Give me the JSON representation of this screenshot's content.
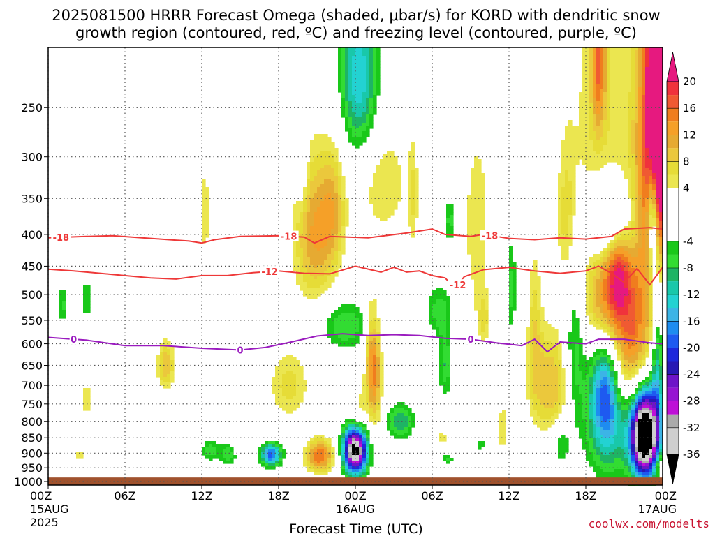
{
  "chart_data": {
    "type": "heatmap",
    "title_lines": [
      "2025081500 HRRR Forecast Omega (shaded, μbar/s) for KORD with dendritic snow",
      "growth region (contoured, red, ºC) and freezing level (contoured, purple, ºC)"
    ],
    "xlabel": "Forecast Time (UTC)",
    "credit": "coolwx.com/modelts",
    "x_ticks": [
      {
        "h": 0,
        "l1": "00Z",
        "l2": "15AUG",
        "l3": "2025"
      },
      {
        "h": 6,
        "l1": "06Z"
      },
      {
        "h": 12,
        "l1": "12Z"
      },
      {
        "h": 18,
        "l1": "18Z"
      },
      {
        "h": 24,
        "l1": "00Z",
        "l2": "16AUG"
      },
      {
        "h": 30,
        "l1": "06Z"
      },
      {
        "h": 36,
        "l1": "12Z"
      },
      {
        "h": 42,
        "l1": "18Z"
      },
      {
        "h": 48,
        "l1": "00Z",
        "l2": "17AUG"
      }
    ],
    "y_ticks": [
      "250",
      "300",
      "350",
      "400",
      "450",
      "500",
      "550",
      "600",
      "650",
      "700",
      "750",
      "800",
      "850",
      "900",
      "950",
      "1000"
    ],
    "y_range_hPa": [
      200,
      1013
    ],
    "x_range_hours": [
      0,
      48
    ],
    "colorbar": {
      "labels": [
        "20",
        "16",
        "12",
        "8",
        "4",
        "-4",
        "-8",
        "-12",
        "-16",
        "-20",
        "-24",
        "-28",
        "-32",
        "-36"
      ],
      "bands": [
        {
          "lo": 20,
          "hi": 99,
          "color": "#e6197f"
        },
        {
          "lo": 18,
          "hi": 20,
          "color": "#f0323c"
        },
        {
          "lo": 16,
          "hi": 18,
          "color": "#f05a32"
        },
        {
          "lo": 14,
          "hi": 16,
          "color": "#f07d1e"
        },
        {
          "lo": 12,
          "hi": 14,
          "color": "#f5a028"
        },
        {
          "lo": 10,
          "hi": 12,
          "color": "#e6aa32"
        },
        {
          "lo": 8,
          "hi": 10,
          "color": "#ebc83c"
        },
        {
          "lo": 6,
          "hi": 8,
          "color": "#e6dc37"
        },
        {
          "lo": 4,
          "hi": 6,
          "color": "#ebe650"
        },
        {
          "lo": -4,
          "hi": 4,
          "color": "#ffffff"
        },
        {
          "lo": -6,
          "hi": -4,
          "color": "#19c819"
        },
        {
          "lo": -8,
          "hi": -6,
          "color": "#32dc32"
        },
        {
          "lo": -10,
          "hi": -8,
          "color": "#1eb464"
        },
        {
          "lo": -12,
          "hi": -10,
          "color": "#19c8aa"
        },
        {
          "lo": -14,
          "hi": -12,
          "color": "#23d2d2"
        },
        {
          "lo": -16,
          "hi": -14,
          "color": "#3cb4e6"
        },
        {
          "lo": -18,
          "hi": -16,
          "color": "#1e8cf0"
        },
        {
          "lo": -20,
          "hi": -18,
          "color": "#1e5af0"
        },
        {
          "lo": -22,
          "hi": -20,
          "color": "#1e28dc"
        },
        {
          "lo": -24,
          "hi": -22,
          "color": "#2819b4"
        },
        {
          "lo": -26,
          "hi": -24,
          "color": "#6e14c8"
        },
        {
          "lo": -28,
          "hi": -26,
          "color": "#9614d2"
        },
        {
          "lo": -30,
          "hi": -28,
          "color": "#be0fd7"
        },
        {
          "lo": -32,
          "hi": -30,
          "color": "#aaaaaa"
        },
        {
          "lo": -36,
          "hi": -32,
          "color": "#cfcfcf"
        },
        {
          "lo": -99,
          "hi": -36,
          "color": "#000000"
        }
      ]
    },
    "omega_features": [
      {
        "t": 2.5,
        "p": 905,
        "sx": 0.3,
        "sy": 12,
        "peak": 6
      },
      {
        "t": 3.0,
        "p": 740,
        "sx": 0.3,
        "sy": 40,
        "peak": 6
      },
      {
        "t": 1.1,
        "p": 520,
        "sx": 0.25,
        "sy": 30,
        "peak": -7
      },
      {
        "t": 3.0,
        "p": 510,
        "sx": 0.22,
        "sy": 30,
        "peak": -7
      },
      {
        "t": 9.2,
        "p": 650,
        "sx": 0.5,
        "sy": 45,
        "peak": 10
      },
      {
        "t": 12.2,
        "p": 370,
        "sx": 0.35,
        "sy": 50,
        "peak": 6
      },
      {
        "t": 12.6,
        "p": 890,
        "sx": 0.5,
        "sy": 28,
        "peak": -7
      },
      {
        "t": 14.2,
        "p": 900,
        "sx": 0.6,
        "sy": 30,
        "peak": -9
      },
      {
        "t": 15.0,
        "p": 890,
        "sx": 0.6,
        "sy": 25,
        "peak": 5
      },
      {
        "t": 17.4,
        "p": 905,
        "sx": 0.6,
        "sy": 28,
        "peak": -19
      },
      {
        "t": 18.8,
        "p": 700,
        "sx": 1.2,
        "sy": 70,
        "peak": 7
      },
      {
        "t": 21.2,
        "p": 910,
        "sx": 0.8,
        "sy": 40,
        "peak": 16
      },
      {
        "t": 20.8,
        "p": 400,
        "sx": 1.2,
        "sy": 80,
        "peak": 12
      },
      {
        "t": 22.3,
        "p": 360,
        "sx": 0.7,
        "sy": 60,
        "peak": 7
      },
      {
        "t": 19.8,
        "p": 300,
        "sx": 0.3,
        "sy": 40,
        "peak": -7
      },
      {
        "t": 24.0,
        "p": 890,
        "sx": 0.65,
        "sy": 55,
        "peak": -40
      },
      {
        "t": 23.2,
        "p": 560,
        "sx": 1.5,
        "sy": 40,
        "peak": -8
      },
      {
        "t": 24.3,
        "p": 780,
        "sx": 0.5,
        "sy": 60,
        "peak": 6
      },
      {
        "t": 24.3,
        "p": 225,
        "sx": 1.1,
        "sy": 50,
        "peak": -14
      },
      {
        "t": 26.2,
        "p": 330,
        "sx": 1.5,
        "sy": 55,
        "peak": 6
      },
      {
        "t": 25.2,
        "p": 600,
        "sx": 0.4,
        "sy": 80,
        "peak": 6
      },
      {
        "t": 25.5,
        "p": 680,
        "sx": 0.4,
        "sy": 100,
        "peak": 12
      },
      {
        "t": 27.5,
        "p": 800,
        "sx": 0.8,
        "sy": 40,
        "peak": -10
      },
      {
        "t": 28.5,
        "p": 350,
        "sx": 0.3,
        "sy": 60,
        "peak": 5
      },
      {
        "t": 30.5,
        "p": 530,
        "sx": 0.8,
        "sy": 40,
        "peak": -7
      },
      {
        "t": 31.0,
        "p": 650,
        "sx": 0.4,
        "sy": 60,
        "peak": -8
      },
      {
        "t": 31.4,
        "p": 380,
        "sx": 0.35,
        "sy": 25,
        "peak": -7
      },
      {
        "t": 30.8,
        "p": 850,
        "sx": 0.3,
        "sy": 15,
        "peak": 6
      },
      {
        "t": 31.2,
        "p": 920,
        "sx": 0.3,
        "sy": 15,
        "peak": -7
      },
      {
        "t": 33.5,
        "p": 390,
        "sx": 0.8,
        "sy": 100,
        "peak": 6
      },
      {
        "t": 34.0,
        "p": 550,
        "sx": 0.4,
        "sy": 40,
        "peak": 6
      },
      {
        "t": 33.8,
        "p": 870,
        "sx": 0.2,
        "sy": 20,
        "peak": -6
      },
      {
        "t": 35.5,
        "p": 820,
        "sx": 0.4,
        "sy": 60,
        "peak": 6
      },
      {
        "t": 36.2,
        "p": 490,
        "sx": 0.25,
        "sy": 70,
        "peak": -7
      },
      {
        "t": 38.0,
        "p": 560,
        "sx": 0.4,
        "sy": 120,
        "peak": 6
      },
      {
        "t": 39.3,
        "p": 700,
        "sx": 1.2,
        "sy": 100,
        "peak": 10
      },
      {
        "t": 40.5,
        "p": 380,
        "sx": 0.5,
        "sy": 70,
        "peak": 6
      },
      {
        "t": 40.0,
        "p": 870,
        "sx": 0.5,
        "sy": 50,
        "peak": -7
      },
      {
        "t": 41.1,
        "p": 620,
        "sx": 0.6,
        "sy": 140,
        "peak": -9
      },
      {
        "t": 43.0,
        "p": 210,
        "sx": 0.4,
        "sy": 40,
        "peak": 12
      },
      {
        "t": 43.3,
        "p": 300,
        "sx": 2.2,
        "sy": 170,
        "peak": 6
      },
      {
        "t": 43.2,
        "p": 520,
        "sx": 1.0,
        "sy": 60,
        "peak": 8
      },
      {
        "t": 44.0,
        "p": 380,
        "sx": 1.2,
        "sy": 40,
        "peak": -13
      },
      {
        "t": 45.5,
        "p": 600,
        "sx": 1.2,
        "sy": 120,
        "peak": 15
      },
      {
        "t": 44.5,
        "p": 460,
        "sx": 0.7,
        "sy": 60,
        "peak": 12
      },
      {
        "t": 43.8,
        "p": 820,
        "sx": 1.3,
        "sy": 120,
        "peak": -12
      },
      {
        "t": 43.5,
        "p": 700,
        "sx": 0.8,
        "sy": 90,
        "peak": -14
      },
      {
        "t": 46.6,
        "p": 840,
        "sx": 0.75,
        "sy": 95,
        "peak": -48
      },
      {
        "t": 47.1,
        "p": 300,
        "sx": 0.9,
        "sy": 140,
        "peak": 16
      },
      {
        "t": 47.8,
        "p": 220,
        "sx": 0.6,
        "sy": 120,
        "peak": 26
      },
      {
        "t": 47.2,
        "p": 380,
        "sx": 0.3,
        "sy": 60,
        "peak": -17
      },
      {
        "t": 47.6,
        "p": 650,
        "sx": 0.35,
        "sy": 150,
        "peak": -12
      },
      {
        "t": 47.8,
        "p": 950,
        "sx": 0.3,
        "sy": 30,
        "peak": 8
      }
    ],
    "contours": [
      {
        "name": "-18",
        "color": "#ee3838",
        "label": "-18",
        "label_at": [
          1.0,
          18.8,
          34.5
        ],
        "points": [
          [
            0,
            405
          ],
          [
            3,
            403
          ],
          [
            5,
            402
          ],
          [
            8,
            406
          ],
          [
            11,
            410
          ],
          [
            12,
            413
          ],
          [
            13,
            408
          ],
          [
            15,
            403
          ],
          [
            18,
            402
          ],
          [
            20,
            404
          ],
          [
            20.8,
            413
          ],
          [
            22,
            403
          ],
          [
            25,
            405
          ],
          [
            28,
            398
          ],
          [
            30,
            392
          ],
          [
            31,
            400
          ],
          [
            33,
            403
          ],
          [
            34,
            400
          ],
          [
            36,
            406
          ],
          [
            38,
            408
          ],
          [
            40,
            405
          ],
          [
            42,
            407
          ],
          [
            44,
            403
          ],
          [
            45,
            392
          ],
          [
            47,
            390
          ],
          [
            48,
            392
          ]
        ]
      },
      {
        "name": "-12",
        "color": "#ee3838",
        "label": "-12",
        "label_at": [
          17.3,
          32.0
        ],
        "points": [
          [
            0,
            455
          ],
          [
            2,
            458
          ],
          [
            5,
            464
          ],
          [
            8,
            470
          ],
          [
            10,
            472
          ],
          [
            12,
            466
          ],
          [
            14,
            466
          ],
          [
            16,
            461
          ],
          [
            18,
            458
          ],
          [
            20,
            462
          ],
          [
            22,
            463
          ],
          [
            24,
            450
          ],
          [
            26,
            460
          ],
          [
            27,
            452
          ],
          [
            28,
            460
          ],
          [
            29,
            458
          ],
          [
            30,
            466
          ],
          [
            31,
            470
          ],
          [
            31.8,
            488
          ],
          [
            32.5,
            468
          ],
          [
            34,
            456
          ],
          [
            36,
            452
          ],
          [
            38,
            458
          ],
          [
            40,
            462
          ],
          [
            42,
            458
          ],
          [
            43,
            450
          ],
          [
            44,
            462
          ],
          [
            45,
            478
          ],
          [
            46,
            454
          ],
          [
            47,
            482
          ],
          [
            48,
            452
          ]
        ]
      },
      {
        "name": "0",
        "color": "#9a1bbf",
        "label": "0",
        "label_at": [
          2.0,
          15.0,
          33.0
        ],
        "points": [
          [
            0,
            586
          ],
          [
            3,
            592
          ],
          [
            6,
            604
          ],
          [
            9,
            604
          ],
          [
            12,
            610
          ],
          [
            15,
            614
          ],
          [
            17,
            608
          ],
          [
            19,
            596
          ],
          [
            21,
            583
          ],
          [
            23,
            578
          ],
          [
            25,
            582
          ],
          [
            27,
            580
          ],
          [
            29,
            582
          ],
          [
            31,
            588
          ],
          [
            33,
            590
          ],
          [
            35,
            598
          ],
          [
            37,
            604
          ],
          [
            38,
            590
          ],
          [
            39,
            618
          ],
          [
            40,
            596
          ],
          [
            42,
            600
          ],
          [
            43,
            590
          ],
          [
            45,
            590
          ],
          [
            47,
            598
          ],
          [
            48,
            600
          ]
        ]
      }
    ]
  }
}
